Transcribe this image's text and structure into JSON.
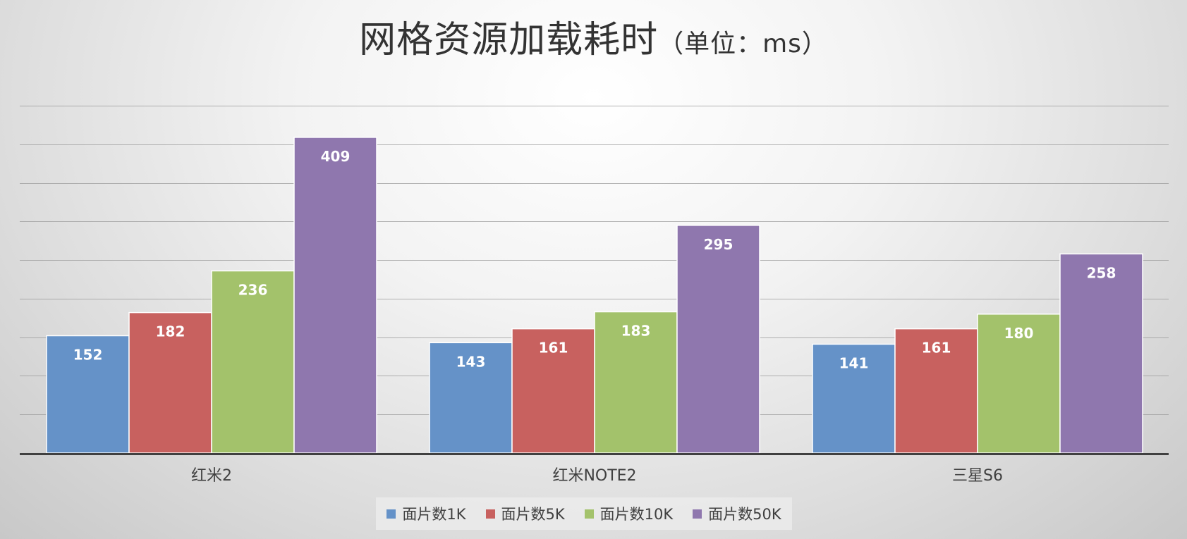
{
  "chart_data": {
    "type": "bar",
    "title": "网格资源加载耗时",
    "title_unit": "（单位：ms）",
    "categories": [
      "红米2",
      "红米NOTE2",
      "三星S6"
    ],
    "series": [
      {
        "name": "面片数1K",
        "values": [
          152,
          143,
          141
        ],
        "color": "#6592c8"
      },
      {
        "name": "面片数5K",
        "values": [
          182,
          161,
          161
        ],
        "color": "#c8615f"
      },
      {
        "name": "面片数10K",
        "values": [
          236,
          183,
          180
        ],
        "color": "#a3c26b"
      },
      {
        "name": "面片数50K",
        "values": [
          409,
          295,
          258
        ],
        "color": "#8f77ae"
      }
    ],
    "ylim": [
      0,
      450
    ],
    "grid": true,
    "legend_position": "bottom",
    "data_labels": true
  }
}
